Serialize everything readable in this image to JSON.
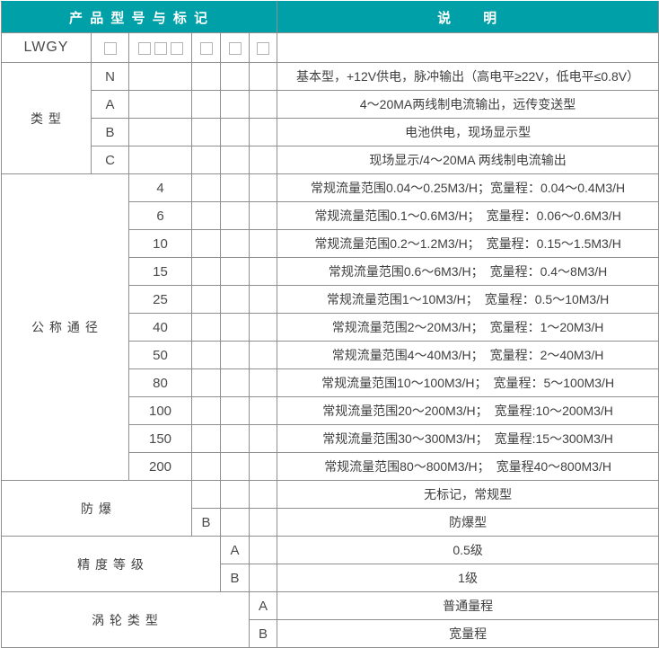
{
  "colors": {
    "header_bg": "#00A0A8",
    "header_text": "#ffffff",
    "grid": "#8f8f8f",
    "text": "#3f3f3f",
    "box_border": "#b3b3b3"
  },
  "header": {
    "left": "产 品 型 号 与 标 记",
    "right": "说　　明"
  },
  "model_row": {
    "model": "LWGY",
    "boxes": [
      1,
      3,
      1,
      1,
      1
    ],
    "box_glyph": "□",
    "description": ""
  },
  "sections": {
    "type": {
      "label": "类 型",
      "rows": [
        {
          "code": "N",
          "desc": "基本型，+12V供电，脉冲输出（高电平≥22V，低电平≤0.8V）"
        },
        {
          "code": "A",
          "desc": "4～20MA两线制电流输出，远传变送型"
        },
        {
          "code": "B",
          "desc": "电池供电，现场显示型"
        },
        {
          "code": "C",
          "desc": "现场显示/4～20MA 两线制电流输出"
        }
      ]
    },
    "diameter": {
      "label": "公 称 通 径",
      "rows": [
        {
          "code": "4",
          "desc": "常规流量范围0.04～0.25M3/H；宽量程：0.04～0.4M3/H"
        },
        {
          "code": "6",
          "desc": "常规流量范围0.1～0.6M3/H；　宽量程：0.06～0.6M3/H"
        },
        {
          "code": "10",
          "desc": "常规流量范围0.2～1.2M3/H；　宽量程：0.15～1.5M3/H"
        },
        {
          "code": "15",
          "desc": "常规流量范围0.6～6M3/H；　宽量程：0.4～8M3/H"
        },
        {
          "code": "25",
          "desc": "常规流量范围1～10M3/H；　宽量程：0.5～10M3/H"
        },
        {
          "code": "40",
          "desc": "常规流量范围2～20M3/H；　宽量程：1～20M3/H"
        },
        {
          "code": "50",
          "desc": "常规流量范围4～40M3/H；　宽量程：2～40M3/H"
        },
        {
          "code": "80",
          "desc": "常规流量范围10～100M3/H；　宽量程：5～100M3/H"
        },
        {
          "code": "100",
          "desc": "常规流量范围20～200M3/H；　宽量程:10～200M3/H"
        },
        {
          "code": "150",
          "desc": "常规流量范围30～300M3/H；　宽量程:15～300M3/H"
        },
        {
          "code": "200",
          "desc": "常规流量范围80～800M3/H；　宽量程40～800M3/H"
        }
      ]
    },
    "explosion": {
      "label": "防 爆",
      "rows": [
        {
          "code": "",
          "desc": "无标记，常规型"
        },
        {
          "code": "B",
          "desc": "防爆型"
        }
      ]
    },
    "accuracy": {
      "label": "精 度 等 级",
      "rows": [
        {
          "code": "A",
          "desc": "0.5级"
        },
        {
          "code": "B",
          "desc": "1级"
        }
      ]
    },
    "turbine": {
      "label": "涡 轮 类 型",
      "rows": [
        {
          "code": "A",
          "desc": "普通量程"
        },
        {
          "code": "B",
          "desc": "宽量程"
        }
      ]
    }
  }
}
